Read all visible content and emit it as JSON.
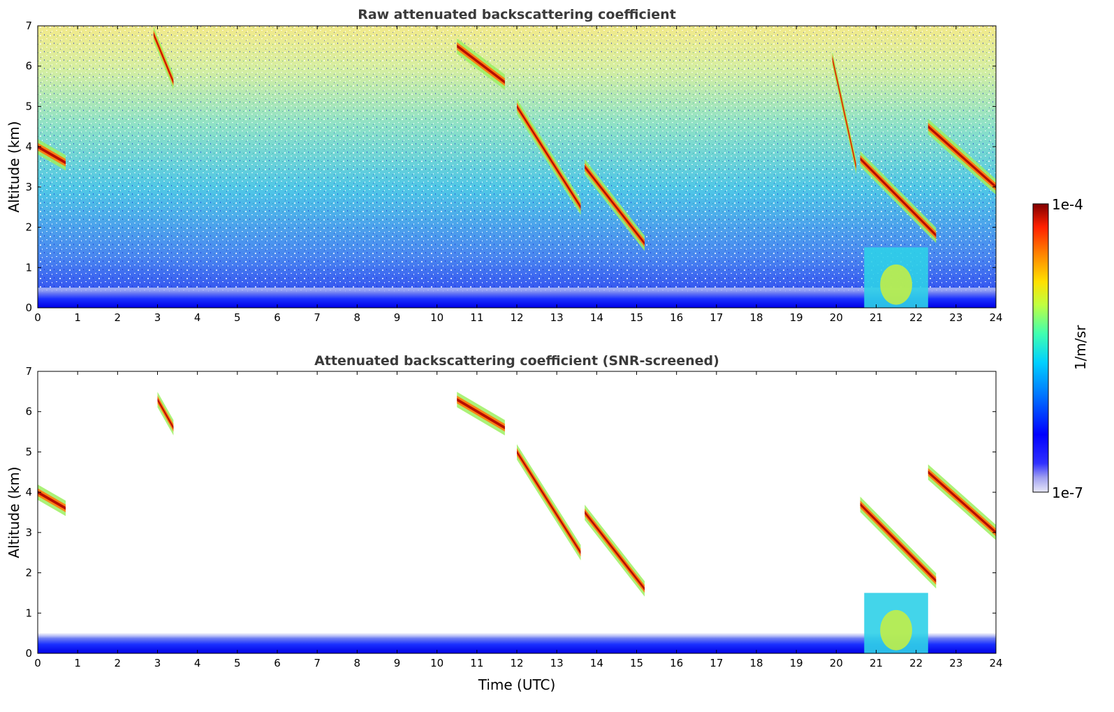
{
  "figure": {
    "panels": [
      {
        "title": "Raw attenuated backscattering coefficient",
        "ylabel": "Altitude (km)",
        "xlabel": ""
      },
      {
        "title": "Attenuated backscattering coefficient (SNR-screened)",
        "ylabel": "Altitude (km)",
        "xlabel": "Time (UTC)"
      }
    ],
    "colorbar": {
      "label": "1/m/sr",
      "max_label": "1e-4",
      "min_label": "1e-7",
      "colors": [
        "#e8e8f8",
        "#c8c8f0",
        "#a0a0f0",
        "#7070f0",
        "#3030ff",
        "#0000ff",
        "#0030ff",
        "#0070ff",
        "#00a0ff",
        "#00d0ff",
        "#20f0e0",
        "#60ffa0",
        "#a0ff60",
        "#e0ff20",
        "#ffe000",
        "#ffb000",
        "#ff8000",
        "#ff4000",
        "#e81000",
        "#c00000",
        "#900000",
        "#800000"
      ]
    }
  },
  "chart_data": [
    {
      "type": "heatmap",
      "title": "Raw attenuated backscattering coefficient",
      "xlabel": "",
      "ylabel": "Altitude (km)",
      "xlim": [
        0,
        24
      ],
      "ylim": [
        0,
        7
      ],
      "xticks": [
        0,
        1,
        2,
        3,
        4,
        5,
        6,
        7,
        8,
        9,
        10,
        11,
        12,
        13,
        14,
        15,
        16,
        17,
        18,
        19,
        20,
        21,
        22,
        23,
        24
      ],
      "yticks": [
        0,
        1,
        2,
        3,
        4,
        5,
        6,
        7
      ],
      "color_scale": "log",
      "clim": [
        "1e-7",
        "1e-4"
      ],
      "features": [
        {
          "name": "aerosol boundary layer",
          "t_start": 0,
          "t_end": 24,
          "alt_top_km": 0.5
        },
        {
          "name": "cloud",
          "t_start": 0.0,
          "t_end": 0.7,
          "alt_km": [
            4.0,
            3.6
          ]
        },
        {
          "name": "cloud",
          "t_start": 2.9,
          "t_end": 3.4,
          "alt_km": [
            6.8,
            5.6
          ]
        },
        {
          "name": "cloud",
          "t_start": 10.5,
          "t_end": 11.7,
          "alt_km": [
            6.5,
            5.6
          ]
        },
        {
          "name": "cloud",
          "t_start": 12.0,
          "t_end": 13.6,
          "alt_km": [
            5.0,
            2.5
          ]
        },
        {
          "name": "cloud",
          "t_start": 13.7,
          "t_end": 15.2,
          "alt_km": [
            3.5,
            1.6
          ]
        },
        {
          "name": "cloud",
          "t_start": 19.9,
          "t_end": 20.5,
          "alt_km": [
            6.2,
            3.5
          ]
        },
        {
          "name": "cloud",
          "t_start": 20.6,
          "t_end": 22.5,
          "alt_km": [
            3.7,
            1.8
          ]
        },
        {
          "name": "cloud",
          "t_start": 22.3,
          "t_end": 24.0,
          "alt_km": [
            4.5,
            3.0
          ]
        },
        {
          "name": "low cloud base",
          "t_start": 20.7,
          "t_end": 22.3,
          "alt_km": [
            1.5,
            0.0
          ]
        }
      ]
    },
    {
      "type": "heatmap",
      "title": "Attenuated backscattering coefficient (SNR-screened)",
      "xlabel": "Time (UTC)",
      "ylabel": "Altitude (km)",
      "xlim": [
        0,
        24
      ],
      "ylim": [
        0,
        7
      ],
      "xticks": [
        0,
        1,
        2,
        3,
        4,
        5,
        6,
        7,
        8,
        9,
        10,
        11,
        12,
        13,
        14,
        15,
        16,
        17,
        18,
        19,
        20,
        21,
        22,
        23,
        24
      ],
      "yticks": [
        0,
        1,
        2,
        3,
        4,
        5,
        6,
        7
      ],
      "color_scale": "log",
      "clim": [
        "1e-7",
        "1e-4"
      ],
      "features": [
        {
          "name": "aerosol boundary layer",
          "t_start": 0,
          "t_end": 24,
          "alt_top_km": 0.5
        },
        {
          "name": "cloud",
          "t_start": 0.0,
          "t_end": 0.7,
          "alt_km": [
            4.0,
            3.6
          ]
        },
        {
          "name": "cloud",
          "t_start": 3.0,
          "t_end": 3.4,
          "alt_km": [
            6.3,
            5.6
          ]
        },
        {
          "name": "cloud",
          "t_start": 10.5,
          "t_end": 11.7,
          "alt_km": [
            6.3,
            5.6
          ]
        },
        {
          "name": "cloud",
          "t_start": 12.0,
          "t_end": 13.6,
          "alt_km": [
            5.0,
            2.5
          ]
        },
        {
          "name": "cloud",
          "t_start": 13.7,
          "t_end": 15.2,
          "alt_km": [
            3.5,
            1.6
          ]
        },
        {
          "name": "cloud",
          "t_start": 20.6,
          "t_end": 22.5,
          "alt_km": [
            3.7,
            1.8
          ]
        },
        {
          "name": "cloud",
          "t_start": 22.3,
          "t_end": 24.0,
          "alt_km": [
            4.5,
            3.0
          ]
        },
        {
          "name": "low cloud base",
          "t_start": 20.7,
          "t_end": 22.3,
          "alt_km": [
            1.5,
            0.0
          ]
        }
      ]
    }
  ]
}
